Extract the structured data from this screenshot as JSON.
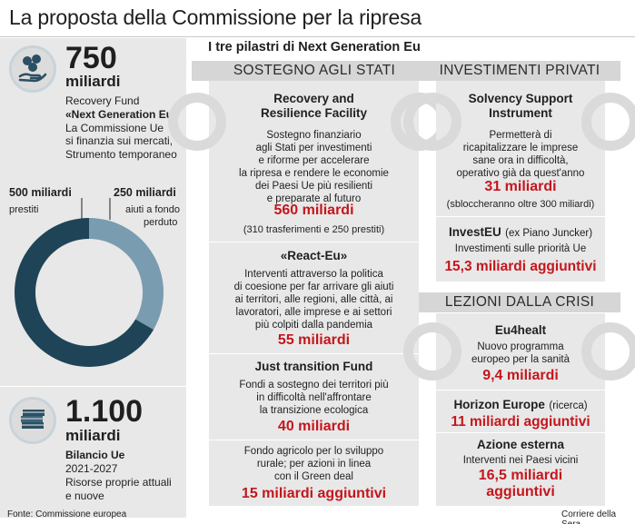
{
  "title": "La proposta della Commissione per la ripresa",
  "left": {
    "top_number": "750",
    "top_unit": "miliardi",
    "rf_line1": "Recovery Fund",
    "rf_line2": "«Next Generation Eu»",
    "rf_line3": "La Commissione Ue",
    "rf_line4": "si finanzia sui mercati,",
    "rf_line5": "Strumento temporaneo",
    "loans_value": "500 miliardi",
    "loans_label": "prestiti",
    "grants_value": "250 miliardi",
    "grants_label_1": "aiuti a fondo",
    "grants_label_2": "perduto",
    "bottom_number": "1.100",
    "bottom_unit": "miliardi",
    "budget_line1": "Bilancio Ue",
    "budget_line2": "2021-2027",
    "budget_line3": "Risorse proprie attuali",
    "budget_line4": "e nuove",
    "source": "Fonte: Commissione europea"
  },
  "chart_data": {
    "type": "pie",
    "categories": [
      "prestiti",
      "aiuti a fondo perduto"
    ],
    "values": [
      500,
      250
    ],
    "units": "miliardi",
    "colors": [
      "#1f4457",
      "#7a9cb0"
    ]
  },
  "pillars_title": "I tre pilastri di Next Generation Eu",
  "sostegno": {
    "band": "SOSTEGNO AGLI STATI",
    "rrf_title_1": "Recovery and",
    "rrf_title_2": "Resilience Facility",
    "rrf_desc": [
      "Sostegno finanziario",
      "agli Stati per investimenti",
      "e riforme per accelerare",
      "la ripresa e rendere le economie",
      "dei Paesi Ue più resilienti",
      "e preparate al futuro"
    ],
    "rrf_amount": "560 miliardi",
    "rrf_note": "(310 trasferimenti e 250 prestiti)",
    "react_title": "«React-Eu»",
    "react_desc": [
      "Interventi attraverso la politica",
      "di coesione per far arrivare gli aiuti",
      "ai territori, alle regioni, alle città, ai",
      "lavoratori, alle imprese e ai settori",
      "più colpiti dalla pandemia"
    ],
    "react_amount": "55 miliardi",
    "jtf_title": "Just transition Fund",
    "jtf_desc": [
      "Fondi a sostegno dei territori più",
      "in difficoltà nell'affrontare",
      "la transizione ecologica"
    ],
    "jtf_amount": "40 miliardi",
    "agri_desc": [
      "Fondo agricolo per lo sviluppo",
      "rurale; per azioni in linea",
      "con il Green deal"
    ],
    "agri_amount": "15 miliardi aggiuntivi"
  },
  "privati": {
    "band": "INVESTIMENTI PRIVATI",
    "ssi_title_1": "Solvency Support",
    "ssi_title_2": "Instrument",
    "ssi_desc": [
      "Permetterà di",
      "ricapitalizzare le imprese",
      "sane ora in difficoltà,",
      "operativo già da quest'anno"
    ],
    "ssi_amount": "31 miliardi",
    "ssi_note": "(sbloccheranno oltre 300 miliardi)",
    "investeu_title": "InvestEU",
    "investeu_sub": "(ex Piano Juncker)",
    "investeu_desc": "Investimenti sulle priorità Ue",
    "investeu_amount": "15,3 miliardi aggiuntivi"
  },
  "lezioni": {
    "band": "LEZIONI DALLA CRISI",
    "eu4_title": "Eu4healt",
    "eu4_desc": [
      "Nuovo programma",
      "europeo per la sanità"
    ],
    "eu4_amount": "9,4 miliardi",
    "horizon_title": "Horizon Europe",
    "horizon_sub": "(ricerca)",
    "horizon_amount": "11 miliardi aggiuntivi",
    "azione_title": "Azione esterna",
    "azione_desc": "Interventi nei Paesi vicini",
    "azione_amount_1": "16,5 miliardi",
    "azione_amount_2": "aggiuntivi"
  },
  "credit": "Corriere della Sera"
}
